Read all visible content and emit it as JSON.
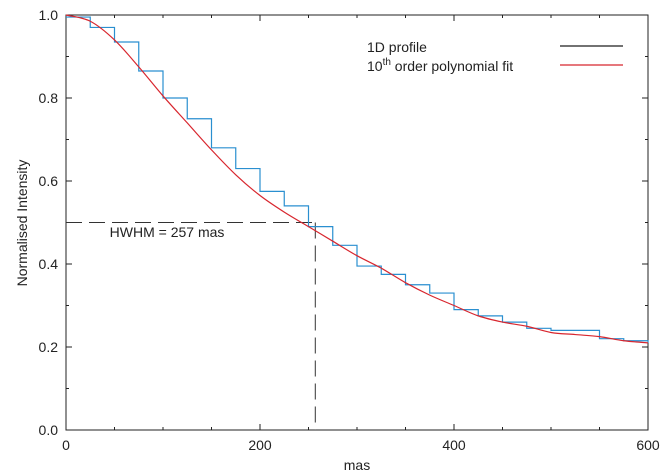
{
  "chart_data": {
    "type": "line",
    "xlabel": "mas",
    "ylabel": "Normalised Intensity",
    "xlim": [
      0,
      600
    ],
    "ylim": [
      0.0,
      1.0
    ],
    "xticks": [
      0,
      200,
      400,
      600
    ],
    "xtick_labels": [
      "0",
      "200",
      "400",
      "600"
    ],
    "yticks": [
      0.0,
      0.2,
      0.4,
      0.6,
      0.8,
      1.0
    ],
    "ytick_labels": [
      "0.0",
      "0.2",
      "0.4",
      "0.6",
      "0.8",
      "1.0"
    ],
    "grid": false,
    "legend_position": "top-right",
    "legend": [
      {
        "label": "1D profile",
        "color": "#1e1e1e"
      },
      {
        "label_main": "10",
        "label_sup": "th",
        "label_rest": " order polynomial fit",
        "color": "#d8262e"
      }
    ],
    "series": [
      {
        "color": "#2a8fd0",
        "step": true,
        "x": [
          0,
          25,
          50,
          75,
          100,
          125,
          150,
          175,
          200,
          225,
          250,
          275,
          300,
          325,
          350,
          375,
          400,
          425,
          450,
          475,
          500,
          525,
          550,
          575,
          600
        ],
        "values": [
          0.995,
          0.97,
          0.935,
          0.865,
          0.8,
          0.75,
          0.68,
          0.63,
          0.575,
          0.54,
          0.49,
          0.445,
          0.395,
          0.375,
          0.35,
          0.33,
          0.29,
          0.275,
          0.26,
          0.245,
          0.24,
          0.24,
          0.22,
          0.215,
          0.21
        ]
      },
      {
        "color": "#d8262e",
        "step": false,
        "x": [
          0,
          25,
          50,
          75,
          100,
          125,
          150,
          175,
          200,
          225,
          250,
          275,
          300,
          325,
          350,
          375,
          400,
          425,
          450,
          475,
          500,
          525,
          550,
          575,
          600
        ],
        "values": [
          1.0,
          0.985,
          0.94,
          0.875,
          0.805,
          0.74,
          0.675,
          0.615,
          0.565,
          0.525,
          0.49,
          0.455,
          0.42,
          0.39,
          0.355,
          0.325,
          0.3,
          0.275,
          0.26,
          0.25,
          0.235,
          0.23,
          0.225,
          0.215,
          0.21
        ]
      }
    ],
    "reference_lines": {
      "y_level": 0.5,
      "x_level": 257,
      "color": "#333333"
    },
    "annotations": [
      {
        "text": "HWHM = 257 mas",
        "x": 45,
        "y": 0.465
      }
    ]
  }
}
